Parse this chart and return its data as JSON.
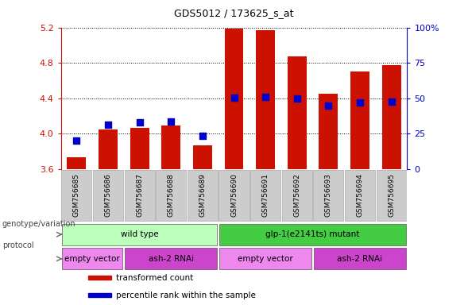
{
  "title": "GDS5012 / 173625_s_at",
  "samples": [
    "GSM756685",
    "GSM756686",
    "GSM756687",
    "GSM756688",
    "GSM756689",
    "GSM756690",
    "GSM756691",
    "GSM756692",
    "GSM756693",
    "GSM756694",
    "GSM756695"
  ],
  "red_values": [
    3.73,
    4.05,
    4.07,
    4.09,
    3.87,
    5.19,
    5.17,
    4.87,
    4.45,
    4.7,
    4.77
  ],
  "blue_values": [
    3.92,
    4.1,
    4.13,
    4.14,
    3.98,
    4.41,
    4.42,
    4.4,
    4.32,
    4.35,
    4.36
  ],
  "ylim_left": [
    3.6,
    5.2
  ],
  "ylim_right": [
    0,
    100
  ],
  "yticks_left": [
    3.6,
    4.0,
    4.4,
    4.8,
    5.2
  ],
  "yticks_right": [
    0,
    25,
    50,
    75,
    100
  ],
  "ytick_labels_right": [
    "0",
    "25",
    "50",
    "75",
    "100%"
  ],
  "bar_color": "#cc1100",
  "marker_color": "#0000cc",
  "bar_bottom": 3.6,
  "bar_width": 0.6,
  "groups": [
    {
      "label": "wild type",
      "start": 0,
      "end": 5,
      "color": "#bbffbb"
    },
    {
      "label": "glp-1(e2141ts) mutant",
      "start": 5,
      "end": 11,
      "color": "#44cc44"
    }
  ],
  "protocols": [
    {
      "label": "empty vector",
      "start": 0,
      "end": 2,
      "color": "#ee88ee"
    },
    {
      "label": "ash-2 RNAi",
      "start": 2,
      "end": 5,
      "color": "#cc44cc"
    },
    {
      "label": "empty vector",
      "start": 5,
      "end": 8,
      "color": "#ee88ee"
    },
    {
      "label": "ash-2 RNAi",
      "start": 8,
      "end": 11,
      "color": "#cc44cc"
    }
  ],
  "legend_items": [
    {
      "label": "transformed count",
      "color": "#cc1100"
    },
    {
      "label": "percentile rank within the sample",
      "color": "#0000cc"
    }
  ],
  "genotype_label": "genotype/variation",
  "protocol_label": "protocol",
  "sample_bg_color": "#cccccc",
  "background_color": "#ffffff"
}
